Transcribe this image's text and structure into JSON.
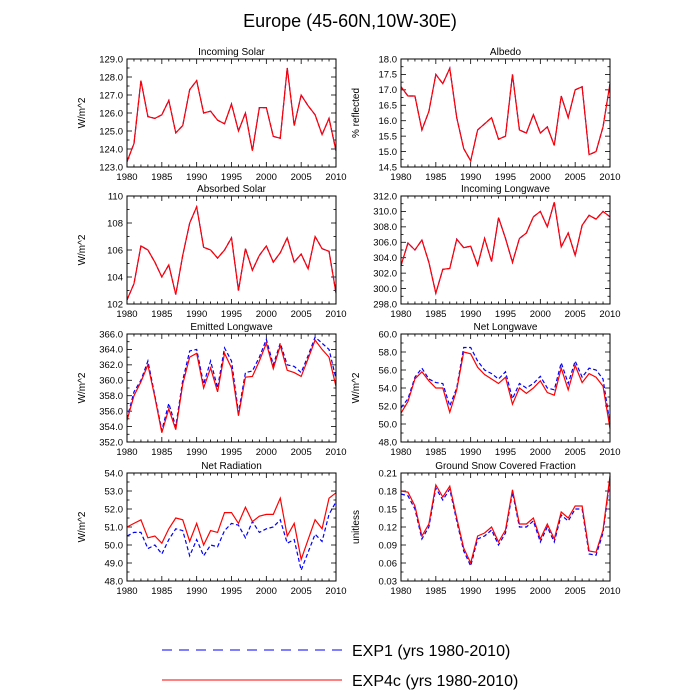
{
  "figure_title": "Europe (45-60N,10W-30E)",
  "legend": [
    {
      "label": "EXP1 (yrs 1980-2010)",
      "color": "#0000ff",
      "dash": "dashed"
    },
    {
      "label": "EXP4c (yrs 1980-2010)",
      "color": "#ff0000",
      "dash": "solid"
    }
  ],
  "chart_data": [
    {
      "type": "line",
      "title": "Incoming Solar",
      "ylabel": "W/m^2",
      "xlim": [
        1980,
        2010
      ],
      "ylim": [
        123.0,
        129.0
      ],
      "yticks": [
        123.0,
        124.0,
        125.0,
        126.0,
        127.0,
        128.0,
        129.0
      ],
      "ytick_labels": [
        "123.0",
        "124.0",
        "125.0",
        "126.0",
        "127.0",
        "128.0",
        "129.0"
      ],
      "xticks": [
        1980,
        1985,
        1990,
        1995,
        2000,
        2005,
        2010
      ],
      "series": [
        {
          "name": "EXP1 (yrs 1980-2010)",
          "color": "#0000ff",
          "dash": "dashed",
          "values": [
            123.3,
            124.3,
            127.8,
            125.8,
            125.7,
            125.9,
            126.7,
            124.9,
            125.3,
            127.3,
            127.8,
            126.0,
            126.1,
            125.6,
            125.4,
            126.5,
            125.0,
            126.0,
            123.9,
            126.3,
            126.3,
            124.7,
            124.6,
            128.5,
            125.3,
            127.0,
            126.4,
            125.9,
            124.8,
            125.7,
            123.9
          ]
        },
        {
          "name": "EXP4c (yrs 1980-2010)",
          "color": "#ff0000",
          "dash": "solid",
          "values": [
            123.3,
            124.3,
            127.8,
            125.8,
            125.7,
            125.9,
            126.7,
            124.9,
            125.3,
            127.3,
            127.8,
            126.0,
            126.1,
            125.6,
            125.4,
            126.5,
            125.0,
            126.0,
            123.9,
            126.3,
            126.3,
            124.7,
            124.6,
            128.5,
            125.3,
            127.0,
            126.4,
            125.9,
            124.8,
            125.7,
            123.9
          ]
        }
      ]
    },
    {
      "type": "line",
      "title": "Albedo",
      "ylabel": "% reflected",
      "xlim": [
        1980,
        2010
      ],
      "ylim": [
        14.5,
        18.0
      ],
      "yticks": [
        14.5,
        15.0,
        15.5,
        16.0,
        16.5,
        17.0,
        17.5,
        18.0
      ],
      "ytick_labels": [
        "14.5",
        "15.0",
        "15.5",
        "16.0",
        "16.5",
        "17.0",
        "17.5",
        "18.0"
      ],
      "xticks": [
        1980,
        1985,
        1990,
        1995,
        2000,
        2005,
        2010
      ],
      "series": [
        {
          "name": "EXP1 (yrs 1980-2010)",
          "color": "#0000ff",
          "dash": "dashed",
          "values": [
            17.1,
            16.8,
            16.8,
            15.7,
            16.3,
            17.5,
            17.2,
            17.7,
            16.1,
            15.1,
            14.7,
            15.7,
            15.9,
            16.1,
            15.4,
            15.5,
            17.5,
            15.7,
            15.6,
            16.2,
            15.6,
            15.8,
            15.2,
            16.8,
            16.1,
            17.0,
            17.1,
            14.9,
            15.0,
            15.8,
            17.2
          ]
        },
        {
          "name": "EXP4c (yrs 1980-2010)",
          "color": "#ff0000",
          "dash": "solid",
          "values": [
            17.1,
            16.8,
            16.8,
            15.7,
            16.3,
            17.5,
            17.2,
            17.7,
            16.1,
            15.1,
            14.7,
            15.7,
            15.9,
            16.1,
            15.4,
            15.5,
            17.5,
            15.7,
            15.6,
            16.2,
            15.6,
            15.8,
            15.2,
            16.8,
            16.1,
            17.0,
            17.1,
            14.9,
            15.0,
            15.8,
            17.2
          ]
        }
      ]
    },
    {
      "type": "line",
      "title": "Absorbed Solar",
      "ylabel": "W/m^2",
      "xlim": [
        1980,
        2010
      ],
      "ylim": [
        102,
        110
      ],
      "yticks": [
        102,
        104,
        106,
        108,
        110
      ],
      "ytick_labels": [
        "102",
        "104",
        "106",
        "108",
        "110"
      ],
      "xticks": [
        1980,
        1985,
        1990,
        1995,
        2000,
        2005,
        2010
      ],
      "series": [
        {
          "name": "EXP1 (yrs 1980-2010)",
          "color": "#0000ff",
          "dash": "dashed",
          "values": [
            102.3,
            103.5,
            106.3,
            106.0,
            105.1,
            104.0,
            104.9,
            102.7,
            105.6,
            108.0,
            109.2,
            106.2,
            106.0,
            105.4,
            106.0,
            106.9,
            103.0,
            106.1,
            104.5,
            105.6,
            106.3,
            105.1,
            105.8,
            106.9,
            105.1,
            105.7,
            104.6,
            107.0,
            106.1,
            105.9,
            102.8
          ]
        },
        {
          "name": "EXP4c (yrs 1980-2010)",
          "color": "#ff0000",
          "dash": "solid",
          "values": [
            102.3,
            103.5,
            106.3,
            106.0,
            105.1,
            104.0,
            104.9,
            102.7,
            105.6,
            108.0,
            109.2,
            106.2,
            106.0,
            105.4,
            106.0,
            106.9,
            103.0,
            106.1,
            104.5,
            105.6,
            106.3,
            105.1,
            105.8,
            106.9,
            105.1,
            105.7,
            104.6,
            107.0,
            106.1,
            105.9,
            102.8
          ]
        }
      ]
    },
    {
      "type": "line",
      "title": "Incoming Longwave",
      "ylabel": "",
      "xlim": [
        1980,
        2010
      ],
      "ylim": [
        298.0,
        312.0
      ],
      "yticks": [
        298.0,
        300.0,
        302.0,
        304.0,
        306.0,
        308.0,
        310.0,
        312.0
      ],
      "ytick_labels": [
        "298.0",
        "300.0",
        "302.0",
        "304.0",
        "306.0",
        "308.0",
        "310.0",
        "312.0"
      ],
      "xticks": [
        1980,
        1985,
        1990,
        1995,
        2000,
        2005,
        2010
      ],
      "series": [
        {
          "name": "EXP1 (yrs 1980-2010)",
          "color": "#0000ff",
          "dash": "dashed",
          "values": [
            303.0,
            305.9,
            305.0,
            306.3,
            303.4,
            299.4,
            302.5,
            302.6,
            306.4,
            305.3,
            305.5,
            303.0,
            306.5,
            303.5,
            309.2,
            306.5,
            303.4,
            306.5,
            307.2,
            309.3,
            310.0,
            308.0,
            311.2,
            305.4,
            307.2,
            304.3,
            308.2,
            309.5,
            309.0,
            310.0,
            309.3
          ]
        },
        {
          "name": "EXP4c (yrs 1980-2010)",
          "color": "#ff0000",
          "dash": "solid",
          "values": [
            303.0,
            305.9,
            305.0,
            306.3,
            303.4,
            299.4,
            302.5,
            302.6,
            306.4,
            305.3,
            305.5,
            303.0,
            306.5,
            303.5,
            309.2,
            306.5,
            303.4,
            306.5,
            307.2,
            309.3,
            310.0,
            308.0,
            311.2,
            305.4,
            307.2,
            304.3,
            308.2,
            309.5,
            309.0,
            310.0,
            309.3
          ]
        }
      ]
    },
    {
      "type": "line",
      "title": "Emitted Longwave",
      "ylabel": "W/m^2",
      "xlim": [
        1980,
        2010
      ],
      "ylim": [
        352.0,
        366.0
      ],
      "yticks": [
        352.0,
        354.0,
        356.0,
        358.0,
        360.0,
        362.0,
        364.0,
        366.0
      ],
      "ytick_labels": [
        "352.0",
        "354.0",
        "356.0",
        "358.0",
        "360.0",
        "362.0",
        "364.0",
        "366.0"
      ],
      "xticks": [
        1980,
        1985,
        1990,
        1995,
        2000,
        2005,
        2010
      ],
      "series": [
        {
          "name": "EXP1 (yrs 1980-2010)",
          "color": "#0000ff",
          "dash": "dashed",
          "values": [
            355.0,
            358.5,
            360.0,
            362.5,
            358.0,
            353.5,
            357.0,
            354.0,
            360.0,
            363.8,
            364.0,
            359.5,
            362.5,
            359.0,
            364.2,
            362.5,
            355.8,
            361.0,
            361.2,
            363.0,
            365.3,
            362.0,
            364.8,
            362.0,
            361.8,
            361.0,
            363.2,
            365.6,
            364.8,
            364.0,
            360.2
          ]
        },
        {
          "name": "EXP4c (yrs 1980-2010)",
          "color": "#ff0000",
          "dash": "solid",
          "values": [
            354.8,
            358.0,
            359.8,
            362.0,
            357.8,
            353.2,
            356.3,
            353.6,
            359.5,
            363.0,
            363.5,
            359.0,
            361.6,
            358.5,
            363.5,
            361.6,
            355.4,
            360.4,
            360.5,
            362.5,
            364.8,
            361.5,
            364.5,
            361.3,
            361.0,
            360.5,
            362.8,
            365.2,
            364.0,
            363.0,
            359.2
          ]
        }
      ]
    },
    {
      "type": "line",
      "title": "Net Longwave",
      "ylabel": "W/m^2",
      "xlim": [
        1980,
        2010
      ],
      "ylim": [
        48.0,
        60.0
      ],
      "yticks": [
        48.0,
        50.0,
        52.0,
        54.0,
        56.0,
        58.0,
        60.0
      ],
      "ytick_labels": [
        "48.0",
        "50.0",
        "52.0",
        "54.0",
        "56.0",
        "58.0",
        "60.0"
      ],
      "xticks": [
        1980,
        1985,
        1990,
        1995,
        2000,
        2005,
        2010
      ],
      "series": [
        {
          "name": "EXP1 (yrs 1980-2010)",
          "color": "#0000ff",
          "dash": "dashed",
          "values": [
            51.8,
            52.8,
            55.2,
            56.2,
            55.0,
            54.6,
            54.5,
            52.0,
            54.0,
            58.5,
            58.5,
            57.0,
            56.0,
            55.6,
            55.0,
            55.8,
            52.8,
            54.5,
            54.0,
            54.5,
            55.3,
            54.0,
            53.8,
            56.8,
            54.5,
            57.0,
            55.2,
            56.2,
            56.0,
            55.0,
            50.0
          ]
        },
        {
          "name": "EXP4c (yrs 1980-2010)",
          "color": "#ff0000",
          "dash": "solid",
          "values": [
            51.2,
            52.5,
            55.0,
            55.8,
            54.8,
            54.0,
            54.0,
            51.3,
            53.8,
            58.0,
            57.8,
            56.3,
            55.5,
            55.0,
            54.5,
            55.2,
            52.2,
            54.0,
            53.4,
            54.0,
            54.8,
            53.5,
            53.2,
            56.2,
            53.8,
            56.5,
            54.6,
            55.6,
            55.2,
            54.2,
            49.5
          ]
        }
      ]
    },
    {
      "type": "line",
      "title": "Net Radiation",
      "ylabel": "W/m^2",
      "xlim": [
        1980,
        2010
      ],
      "ylim": [
        48.0,
        54.0
      ],
      "yticks": [
        48.0,
        49.0,
        50.0,
        51.0,
        52.0,
        53.0,
        54.0
      ],
      "ytick_labels": [
        "48.0",
        "49.0",
        "50.0",
        "51.0",
        "52.0",
        "53.0",
        "54.0"
      ],
      "xticks": [
        1980,
        1985,
        1990,
        1995,
        2000,
        2005,
        2010
      ],
      "series": [
        {
          "name": "EXP1 (yrs 1980-2010)",
          "color": "#0000ff",
          "dash": "dashed",
          "values": [
            50.5,
            50.7,
            50.7,
            49.8,
            50.0,
            49.5,
            50.3,
            50.9,
            50.8,
            49.4,
            50.3,
            49.4,
            50.0,
            49.9,
            50.8,
            51.2,
            51.1,
            50.4,
            51.3,
            50.7,
            50.9,
            51.0,
            51.4,
            50.1,
            50.3,
            48.6,
            49.6,
            50.6,
            50.2,
            51.7,
            52.4
          ]
        },
        {
          "name": "EXP4c (yrs 1980-2010)",
          "color": "#ff0000",
          "dash": "solid",
          "values": [
            51.0,
            51.2,
            51.4,
            50.4,
            50.5,
            50.1,
            50.9,
            51.5,
            51.4,
            50.2,
            51.2,
            50.0,
            50.8,
            50.7,
            51.8,
            51.8,
            51.2,
            52.1,
            51.3,
            51.6,
            51.7,
            51.7,
            52.6,
            50.5,
            51.2,
            49.2,
            50.3,
            51.4,
            50.9,
            52.6,
            52.9
          ]
        }
      ]
    },
    {
      "type": "line",
      "title": "Ground Snow Covered Fraction",
      "ylabel": "unitless",
      "xlim": [
        1980,
        2010
      ],
      "ylim": [
        0.03,
        0.21
      ],
      "yticks": [
        0.03,
        0.06,
        0.09,
        0.12,
        0.15,
        0.18,
        0.21
      ],
      "ytick_labels": [
        "0.03",
        "0.06",
        "0.09",
        "0.12",
        "0.15",
        "0.18",
        "0.21"
      ],
      "xticks": [
        1980,
        1985,
        1990,
        1995,
        2000,
        2005,
        2010
      ],
      "series": [
        {
          "name": "EXP1 (yrs 1980-2010)",
          "color": "#0000ff",
          "dash": "dashed",
          "values": [
            0.175,
            0.172,
            0.15,
            0.1,
            0.12,
            0.185,
            0.165,
            0.183,
            0.13,
            0.08,
            0.055,
            0.1,
            0.105,
            0.115,
            0.09,
            0.11,
            0.178,
            0.12,
            0.12,
            0.13,
            0.095,
            0.12,
            0.095,
            0.14,
            0.13,
            0.15,
            0.15,
            0.075,
            0.073,
            0.11,
            0.2
          ]
        },
        {
          "name": "EXP4c (yrs 1980-2010)",
          "color": "#ff0000",
          "dash": "solid",
          "values": [
            0.18,
            0.178,
            0.155,
            0.105,
            0.125,
            0.19,
            0.17,
            0.188,
            0.135,
            0.085,
            0.06,
            0.105,
            0.11,
            0.12,
            0.095,
            0.115,
            0.182,
            0.125,
            0.125,
            0.135,
            0.1,
            0.125,
            0.1,
            0.145,
            0.135,
            0.155,
            0.155,
            0.08,
            0.078,
            0.115,
            0.205
          ]
        }
      ]
    }
  ]
}
